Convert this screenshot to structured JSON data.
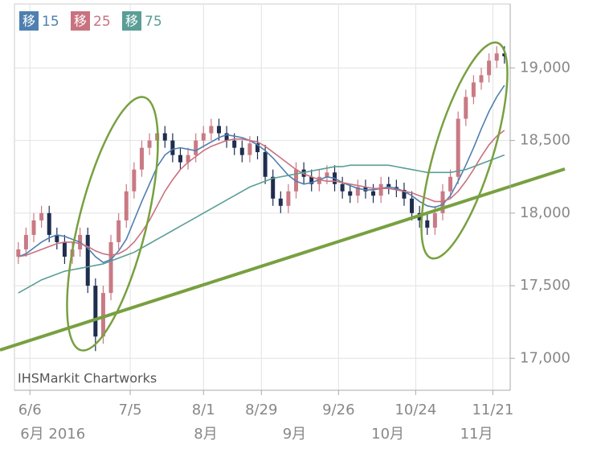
{
  "chart_data": {
    "type": "candlestick",
    "watermark": "IHSMarkit Chartworks",
    "legend_prefix": "移",
    "x": [
      0,
      2,
      4,
      6,
      8,
      10,
      12,
      14,
      16,
      18,
      20,
      22,
      24,
      26,
      28,
      30,
      32,
      34,
      36,
      38,
      40,
      42,
      44,
      46,
      48,
      50,
      52,
      54,
      56,
      58,
      60,
      62,
      64,
      66,
      68,
      70,
      72,
      74,
      76,
      78,
      80,
      82,
      84,
      86,
      88,
      90,
      92,
      94,
      96,
      98,
      100,
      102,
      104,
      106,
      108,
      110,
      112,
      114,
      116,
      118,
      120,
      122,
      124,
      126
    ],
    "open": [
      17700,
      17750,
      17850,
      17950,
      18000,
      17850,
      17800,
      17700,
      17750,
      17850,
      17500,
      17150,
      17450,
      17800,
      17950,
      18150,
      18300,
      18450,
      18500,
      18550,
      18500,
      18400,
      18350,
      18400,
      18500,
      18550,
      18600,
      18550,
      18500,
      18450,
      18400,
      18480,
      18420,
      18250,
      18100,
      18050,
      18150,
      18300,
      18250,
      18200,
      18250,
      18280,
      18200,
      18150,
      18120,
      18180,
      18150,
      18120,
      18200,
      18180,
      18160,
      18100,
      18000,
      17950,
      17900,
      18000,
      18150,
      18250,
      18650,
      18800,
      18900,
      18950,
      19050,
      19100
    ],
    "high": [
      17800,
      17900,
      18000,
      18050,
      18050,
      17900,
      17850,
      17800,
      17900,
      17900,
      17550,
      17500,
      17850,
      18000,
      18200,
      18350,
      18500,
      18550,
      18600,
      18600,
      18550,
      18450,
      18450,
      18550,
      18600,
      18650,
      18650,
      18600,
      18550,
      18500,
      18530,
      18530,
      18470,
      18300,
      18150,
      18200,
      18350,
      18350,
      18300,
      18300,
      18330,
      18330,
      18250,
      18200,
      18230,
      18230,
      18200,
      18250,
      18250,
      18230,
      18210,
      18150,
      18050,
      18000,
      18050,
      18200,
      18300,
      18700,
      18850,
      18950,
      19000,
      19100,
      19150,
      19150
    ],
    "low": [
      17650,
      17700,
      17800,
      17900,
      17800,
      17750,
      17650,
      17650,
      17700,
      17450,
      17050,
      17100,
      17400,
      17750,
      17900,
      18100,
      18250,
      18400,
      18450,
      18450,
      18350,
      18300,
      18300,
      18350,
      18450,
      18500,
      18500,
      18450,
      18400,
      18350,
      18350,
      18370,
      18200,
      18050,
      18000,
      18000,
      18100,
      18200,
      18150,
      18150,
      18200,
      18150,
      18100,
      18070,
      18070,
      18100,
      18070,
      18070,
      18130,
      18110,
      18050,
      17950,
      17900,
      17850,
      17850,
      17950,
      18100,
      18200,
      18600,
      18750,
      18850,
      18900,
      19000,
      19030
    ],
    "close": [
      17750,
      17850,
      17950,
      18000,
      17850,
      17800,
      17700,
      17750,
      17850,
      17500,
      17150,
      17450,
      17800,
      17950,
      18150,
      18300,
      18450,
      18500,
      18550,
      18500,
      18400,
      18350,
      18400,
      18500,
      18550,
      18600,
      18550,
      18500,
      18450,
      18400,
      18480,
      18420,
      18250,
      18100,
      18050,
      18150,
      18300,
      18250,
      18200,
      18250,
      18280,
      18200,
      18150,
      18120,
      18180,
      18150,
      18120,
      18200,
      18180,
      18160,
      18100,
      18000,
      17950,
      17900,
      18000,
      18150,
      18250,
      18650,
      18800,
      18900,
      18950,
      19050,
      19100,
      19080
    ],
    "up_color": "#c97a84",
    "down_color": "#1f2d4e",
    "series": [
      {
        "name": "15",
        "color": "#4f7fb0",
        "values": [
          17700,
          17720,
          17760,
          17800,
          17830,
          17850,
          17840,
          17820,
          17800,
          17760,
          17700,
          17660,
          17680,
          17740,
          17820,
          17950,
          18080,
          18200,
          18320,
          18400,
          18440,
          18450,
          18440,
          18430,
          18460,
          18490,
          18520,
          18540,
          18530,
          18520,
          18500,
          18470,
          18430,
          18380,
          18320,
          18260,
          18220,
          18200,
          18210,
          18230,
          18250,
          18240,
          18210,
          18190,
          18170,
          18160,
          18160,
          18170,
          18180,
          18170,
          18150,
          18120,
          18080,
          18050,
          18040,
          18060,
          18120,
          18220,
          18330,
          18450,
          18580,
          18700,
          18800,
          18880
        ]
      },
      {
        "name": "25",
        "color": "#c9727f",
        "values": [
          17700,
          17710,
          17730,
          17750,
          17770,
          17790,
          17800,
          17800,
          17790,
          17770,
          17740,
          17720,
          17710,
          17720,
          17750,
          17800,
          17870,
          17950,
          18050,
          18150,
          18230,
          18300,
          18350,
          18390,
          18430,
          18460,
          18480,
          18500,
          18510,
          18510,
          18500,
          18490,
          18460,
          18420,
          18380,
          18340,
          18300,
          18270,
          18250,
          18230,
          18220,
          18220,
          18210,
          18200,
          18190,
          18180,
          18170,
          18170,
          18170,
          18160,
          18150,
          18140,
          18120,
          18100,
          18080,
          18080,
          18100,
          18150,
          18220,
          18300,
          18390,
          18470,
          18530,
          18570
        ]
      },
      {
        "name": "75",
        "color": "#5a9e96",
        "values": [
          17450,
          17480,
          17510,
          17540,
          17560,
          17580,
          17600,
          17610,
          17620,
          17630,
          17640,
          17650,
          17670,
          17690,
          17710,
          17730,
          17760,
          17790,
          17820,
          17850,
          17880,
          17910,
          17940,
          17970,
          18000,
          18030,
          18060,
          18090,
          18120,
          18150,
          18180,
          18200,
          18220,
          18240,
          18250,
          18260,
          18270,
          18280,
          18290,
          18300,
          18310,
          18320,
          18320,
          18330,
          18330,
          18330,
          18330,
          18330,
          18330,
          18320,
          18310,
          18300,
          18290,
          18280,
          18280,
          18280,
          18280,
          18290,
          18300,
          18320,
          18340,
          18360,
          18380,
          18400
        ]
      }
    ],
    "xlim": [
      -1,
      127.5
    ],
    "xticks": [
      {
        "value": 3,
        "label": "6/6"
      },
      {
        "value": 29,
        "label": "7/5"
      },
      {
        "value": 48,
        "label": "8/1"
      },
      {
        "value": 63,
        "label": "8/29"
      },
      {
        "value": 83,
        "label": "9/26"
      },
      {
        "value": 103,
        "label": "10/24"
      },
      {
        "value": 123,
        "label": "11/21"
      }
    ],
    "month_labels": [
      {
        "value": 3,
        "label": "6月 2016"
      },
      {
        "value": 48,
        "label": "8月"
      },
      {
        "value": 71,
        "label": "9月"
      },
      {
        "value": 94,
        "label": "10月"
      },
      {
        "value": 117,
        "label": "11月"
      }
    ],
    "ylim": [
      16780,
      19440
    ],
    "yticks": [
      {
        "value": 17000,
        "label": "17,000"
      },
      {
        "value": 17500,
        "label": "17,500"
      },
      {
        "value": 18000,
        "label": "18,000"
      },
      {
        "value": 18500,
        "label": "18,500"
      },
      {
        "value": 19000,
        "label": "19,000"
      }
    ],
    "grid": true
  }
}
